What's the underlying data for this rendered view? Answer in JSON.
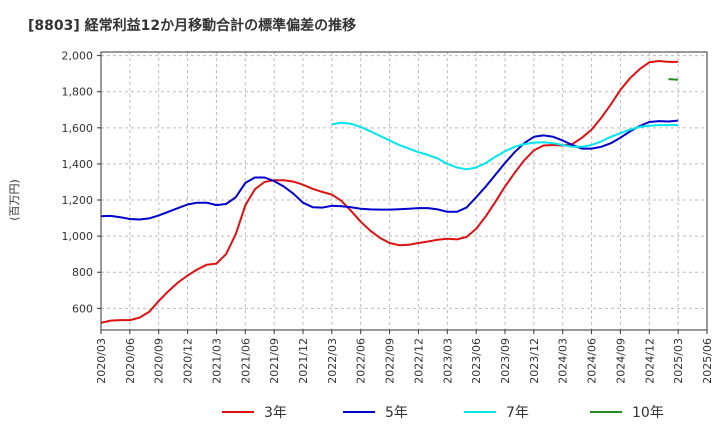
{
  "chart_data": {
    "type": "line",
    "title": "[8803]  経常利益12か月移動合計の標準偏差の推移",
    "ylabel": "(百万円)",
    "xlabel": "",
    "ylim": [
      480,
      2020
    ],
    "yticks": [
      600,
      800,
      1000,
      1200,
      1400,
      1600,
      1800,
      2000
    ],
    "ytick_labels": [
      "600",
      "800",
      "1,000",
      "1,200",
      "1,400",
      "1,600",
      "1,800",
      "2,000"
    ],
    "xlim": [
      "2020-03",
      "2025-06"
    ],
    "xticks": [
      "2020/03",
      "2020/06",
      "2020/09",
      "2020/12",
      "2021/03",
      "2021/06",
      "2021/09",
      "2021/12",
      "2022/03",
      "2022/06",
      "2022/09",
      "2022/12",
      "2023/03",
      "2023/06",
      "2023/09",
      "2023/12",
      "2024/03",
      "2024/06",
      "2024/09",
      "2024/12",
      "2025/03",
      "2025/06"
    ],
    "grid": true,
    "legend_position": "bottom",
    "series": [
      {
        "name": "3年",
        "color": "#dd1111",
        "x": [
          "2020-03",
          "2020-04",
          "2020-05",
          "2020-06",
          "2020-07",
          "2020-08",
          "2020-09",
          "2020-10",
          "2020-11",
          "2020-12",
          "2021-01",
          "2021-02",
          "2021-03",
          "2021-04",
          "2021-05",
          "2021-06",
          "2021-07",
          "2021-08",
          "2021-09",
          "2021-10",
          "2021-11",
          "2021-12",
          "2022-01",
          "2022-02",
          "2022-03",
          "2022-04",
          "2022-05",
          "2022-06",
          "2022-07",
          "2022-08",
          "2022-09",
          "2022-10",
          "2022-11",
          "2022-12",
          "2023-01",
          "2023-02",
          "2023-03",
          "2023-04",
          "2023-05",
          "2023-06",
          "2023-07",
          "2023-08",
          "2023-09",
          "2023-10",
          "2023-11",
          "2023-12",
          "2024-01",
          "2024-02",
          "2024-03",
          "2024-04",
          "2024-05",
          "2024-06",
          "2024-07",
          "2024-08",
          "2024-09",
          "2024-10",
          "2024-11",
          "2024-12",
          "2025-01",
          "2025-02",
          "2025-03"
        ],
        "values": [
          520,
          532,
          535,
          535,
          548,
          580,
          640,
          695,
          743,
          782,
          815,
          842,
          848,
          900,
          1010,
          1170,
          1260,
          1300,
          1310,
          1310,
          1302,
          1285,
          1262,
          1245,
          1230,
          1195,
          1140,
          1080,
          1030,
          990,
          962,
          950,
          952,
          962,
          970,
          980,
          985,
          982,
          995,
          1040,
          1110,
          1190,
          1275,
          1350,
          1420,
          1475,
          1502,
          1505,
          1502,
          1510,
          1545,
          1590,
          1655,
          1730,
          1810,
          1875,
          1925,
          1963,
          1970,
          1965,
          1965
        ]
      },
      {
        "name": "5年",
        "color": "#0000cc",
        "x": [
          "2020-03",
          "2020-04",
          "2020-05",
          "2020-06",
          "2020-07",
          "2020-08",
          "2020-09",
          "2020-10",
          "2020-11",
          "2020-12",
          "2021-01",
          "2021-02",
          "2021-03",
          "2021-04",
          "2021-05",
          "2021-06",
          "2021-07",
          "2021-08",
          "2021-09",
          "2021-10",
          "2021-11",
          "2021-12",
          "2022-01",
          "2022-02",
          "2022-03",
          "2022-04",
          "2022-05",
          "2022-06",
          "2022-07",
          "2022-08",
          "2022-09",
          "2022-10",
          "2022-11",
          "2022-12",
          "2023-01",
          "2023-02",
          "2023-03",
          "2023-04",
          "2023-05",
          "2023-06",
          "2023-07",
          "2023-08",
          "2023-09",
          "2023-10",
          "2023-11",
          "2023-12",
          "2024-01",
          "2024-02",
          "2024-03",
          "2024-04",
          "2024-05",
          "2024-06",
          "2024-07",
          "2024-08",
          "2024-09",
          "2024-10",
          "2024-11",
          "2024-12",
          "2025-01",
          "2025-02",
          "2025-03"
        ],
        "values": [
          1110,
          1112,
          1105,
          1095,
          1092,
          1098,
          1115,
          1135,
          1155,
          1175,
          1185,
          1185,
          1172,
          1178,
          1215,
          1295,
          1325,
          1325,
          1305,
          1275,
          1235,
          1185,
          1160,
          1158,
          1168,
          1165,
          1160,
          1152,
          1148,
          1147,
          1147,
          1149,
          1152,
          1155,
          1155,
          1148,
          1135,
          1135,
          1158,
          1215,
          1275,
          1340,
          1405,
          1465,
          1515,
          1550,
          1558,
          1550,
          1530,
          1505,
          1485,
          1485,
          1495,
          1515,
          1545,
          1580,
          1610,
          1632,
          1637,
          1635,
          1640
        ]
      },
      {
        "name": "7年",
        "color": "#00e5ee",
        "x": [
          "2022-03",
          "2022-04",
          "2022-05",
          "2022-06",
          "2022-07",
          "2022-08",
          "2022-09",
          "2022-10",
          "2022-11",
          "2022-12",
          "2023-01",
          "2023-02",
          "2023-03",
          "2023-04",
          "2023-05",
          "2023-06",
          "2023-07",
          "2023-08",
          "2023-09",
          "2023-10",
          "2023-11",
          "2023-12",
          "2024-01",
          "2024-02",
          "2024-03",
          "2024-04",
          "2024-05",
          "2024-06",
          "2024-07",
          "2024-08",
          "2024-09",
          "2024-10",
          "2024-11",
          "2024-12",
          "2025-01",
          "2025-02",
          "2025-03"
        ],
        "values": [
          1620,
          1628,
          1622,
          1605,
          1580,
          1555,
          1530,
          1505,
          1485,
          1465,
          1450,
          1430,
          1400,
          1380,
          1370,
          1380,
          1405,
          1440,
          1470,
          1495,
          1510,
          1518,
          1520,
          1515,
          1505,
          1495,
          1495,
          1505,
          1525,
          1550,
          1570,
          1590,
          1605,
          1612,
          1615,
          1615,
          1615
        ]
      },
      {
        "name": "10年",
        "color": "#228b22",
        "x": [
          "2025-02",
          "2025-03"
        ],
        "values": [
          1870,
          1866
        ]
      }
    ]
  }
}
